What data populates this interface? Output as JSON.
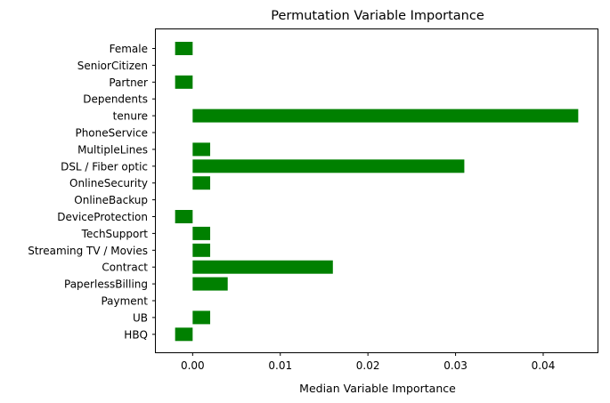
{
  "chart_data": {
    "type": "bar",
    "orientation": "horizontal",
    "title": "Permutation Variable Importance",
    "xlabel": "Median Variable Importance",
    "ylabel": "",
    "categories": [
      "Female",
      "SeniorCitizen",
      "Partner",
      "Dependents",
      "tenure",
      "PhoneService",
      "MultipleLines",
      "DSL / Fiber optic",
      "OnlineSecurity",
      "OnlineBackup",
      "DeviceProtection",
      "TechSupport",
      "Streaming TV / Movies",
      "Contract",
      "PaperlessBilling",
      "Payment",
      "UB",
      "HBQ"
    ],
    "values": [
      -0.002,
      0.0,
      -0.002,
      0.0,
      0.044,
      0.0,
      0.002,
      0.031,
      0.002,
      0.0,
      -0.002,
      0.002,
      0.002,
      0.016,
      0.004,
      0.0,
      0.002,
      -0.002
    ],
    "xlim": [
      -0.0042,
      0.0462
    ],
    "xticks": [
      0.0,
      0.01,
      0.02,
      0.03,
      0.04
    ],
    "xtick_labels": [
      "0.00",
      "0.01",
      "0.02",
      "0.03",
      "0.04"
    ],
    "bar_color": "#008000",
    "grid": false,
    "legend": "none"
  }
}
